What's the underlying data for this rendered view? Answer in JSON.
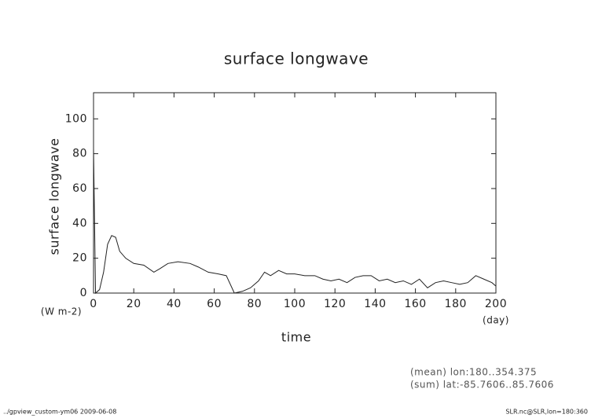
{
  "chart_data": {
    "type": "line",
    "title": "surface longwave",
    "y_label": "surface longwave",
    "y_units": "(W m-2)",
    "x_label": "time",
    "x_units": "(day)",
    "x": [
      0,
      1,
      3,
      5,
      7,
      9,
      11,
      13,
      16,
      20,
      25,
      30,
      33,
      37,
      42,
      48,
      52,
      57,
      62,
      66,
      70,
      74,
      78,
      82,
      85,
      88,
      92,
      96,
      100,
      105,
      110,
      114,
      118,
      122,
      126,
      130,
      134,
      138,
      142,
      146,
      150,
      154,
      158,
      162,
      166,
      170,
      174,
      178,
      182,
      186,
      190,
      194,
      198,
      200
    ],
    "series": [
      {
        "name": "surface longwave",
        "color": "#222222",
        "values": [
          83,
          0,
          2,
          12,
          28,
          33,
          32,
          24,
          20,
          17,
          16,
          12,
          14,
          17,
          18,
          17,
          15,
          12,
          11,
          10,
          0,
          1,
          3,
          7,
          12,
          10,
          13,
          11,
          11,
          10,
          10,
          8,
          7,
          8,
          6,
          9,
          10,
          10,
          7,
          8,
          6,
          7,
          5,
          8,
          3,
          6,
          7,
          6,
          5,
          6,
          10,
          8,
          6,
          4
        ]
      }
    ],
    "xlim": [
      0,
      200
    ],
    "xticks": [
      0,
      20,
      40,
      60,
      80,
      100,
      120,
      140,
      160,
      180,
      200
    ],
    "ylim": [
      0,
      115
    ],
    "yticks": [
      0,
      20,
      40,
      60,
      80,
      100
    ],
    "annotations": [
      "(mean) lon:180..354.375",
      "(sum) lat:-85.7606..85.7606"
    ],
    "footer_left": "../gpview_custom-ym06  2009-06-08",
    "footer_right": "SLR.nc@SLR,lon=180:360"
  }
}
